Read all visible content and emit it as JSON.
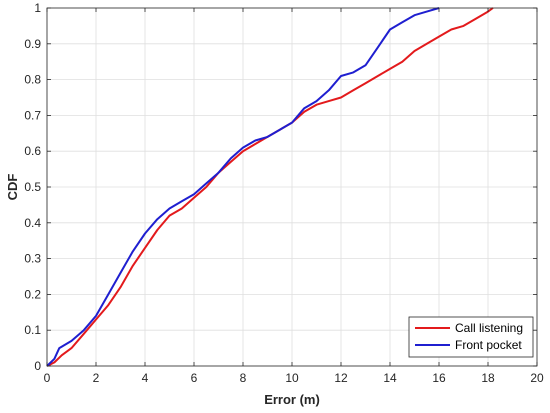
{
  "chart_data": {
    "type": "line",
    "title": "",
    "xlabel": "Error (m)",
    "ylabel": "CDF",
    "xlim": [
      0,
      20
    ],
    "ylim": [
      0,
      1
    ],
    "xticks": [
      "0",
      "2",
      "4",
      "6",
      "8",
      "10",
      "12",
      "14",
      "16",
      "18",
      "20"
    ],
    "yticks": [
      "0",
      "0.1",
      "0.2",
      "0.3",
      "0.4",
      "0.5",
      "0.6",
      "0.7",
      "0.8",
      "0.9",
      "1"
    ],
    "grid": true,
    "legend_position": "bottom-right",
    "series": [
      {
        "name": "Call listening",
        "color": "#e31a1c",
        "points": [
          [
            0,
            0
          ],
          [
            0.3,
            0.01
          ],
          [
            0.6,
            0.03
          ],
          [
            1.0,
            0.05
          ],
          [
            1.5,
            0.09
          ],
          [
            2.0,
            0.13
          ],
          [
            2.5,
            0.17
          ],
          [
            3.0,
            0.22
          ],
          [
            3.5,
            0.28
          ],
          [
            4.0,
            0.33
          ],
          [
            4.5,
            0.38
          ],
          [
            5.0,
            0.42
          ],
          [
            5.5,
            0.44
          ],
          [
            6.0,
            0.47
          ],
          [
            6.5,
            0.5
          ],
          [
            7.0,
            0.54
          ],
          [
            7.5,
            0.57
          ],
          [
            8.0,
            0.6
          ],
          [
            8.5,
            0.62
          ],
          [
            9.0,
            0.64
          ],
          [
            9.5,
            0.66
          ],
          [
            10.0,
            0.68
          ],
          [
            10.5,
            0.71
          ],
          [
            11.0,
            0.73
          ],
          [
            11.5,
            0.74
          ],
          [
            12.0,
            0.75
          ],
          [
            12.5,
            0.77
          ],
          [
            13.0,
            0.79
          ],
          [
            13.5,
            0.81
          ],
          [
            14.0,
            0.83
          ],
          [
            14.5,
            0.85
          ],
          [
            15.0,
            0.88
          ],
          [
            15.5,
            0.9
          ],
          [
            16.0,
            0.92
          ],
          [
            16.5,
            0.94
          ],
          [
            17.0,
            0.95
          ],
          [
            17.5,
            0.97
          ],
          [
            18.0,
            0.99
          ],
          [
            18.2,
            1.0
          ]
        ]
      },
      {
        "name": "Front pocket",
        "color": "#1f1fd0",
        "points": [
          [
            0,
            0
          ],
          [
            0.3,
            0.02
          ],
          [
            0.5,
            0.05
          ],
          [
            1.0,
            0.07
          ],
          [
            1.5,
            0.1
          ],
          [
            2.0,
            0.14
          ],
          [
            2.5,
            0.2
          ],
          [
            3.0,
            0.26
          ],
          [
            3.5,
            0.32
          ],
          [
            4.0,
            0.37
          ],
          [
            4.5,
            0.41
          ],
          [
            5.0,
            0.44
          ],
          [
            5.5,
            0.46
          ],
          [
            6.0,
            0.48
          ],
          [
            6.5,
            0.51
          ],
          [
            7.0,
            0.54
          ],
          [
            7.5,
            0.58
          ],
          [
            8.0,
            0.61
          ],
          [
            8.5,
            0.63
          ],
          [
            9.0,
            0.64
          ],
          [
            9.5,
            0.66
          ],
          [
            10.0,
            0.68
          ],
          [
            10.5,
            0.72
          ],
          [
            11.0,
            0.74
          ],
          [
            11.5,
            0.77
          ],
          [
            12.0,
            0.81
          ],
          [
            12.5,
            0.82
          ],
          [
            13.0,
            0.84
          ],
          [
            13.5,
            0.89
          ],
          [
            14.0,
            0.94
          ],
          [
            14.5,
            0.96
          ],
          [
            15.0,
            0.98
          ],
          [
            15.5,
            0.99
          ],
          [
            16.0,
            1.0
          ]
        ]
      }
    ]
  }
}
